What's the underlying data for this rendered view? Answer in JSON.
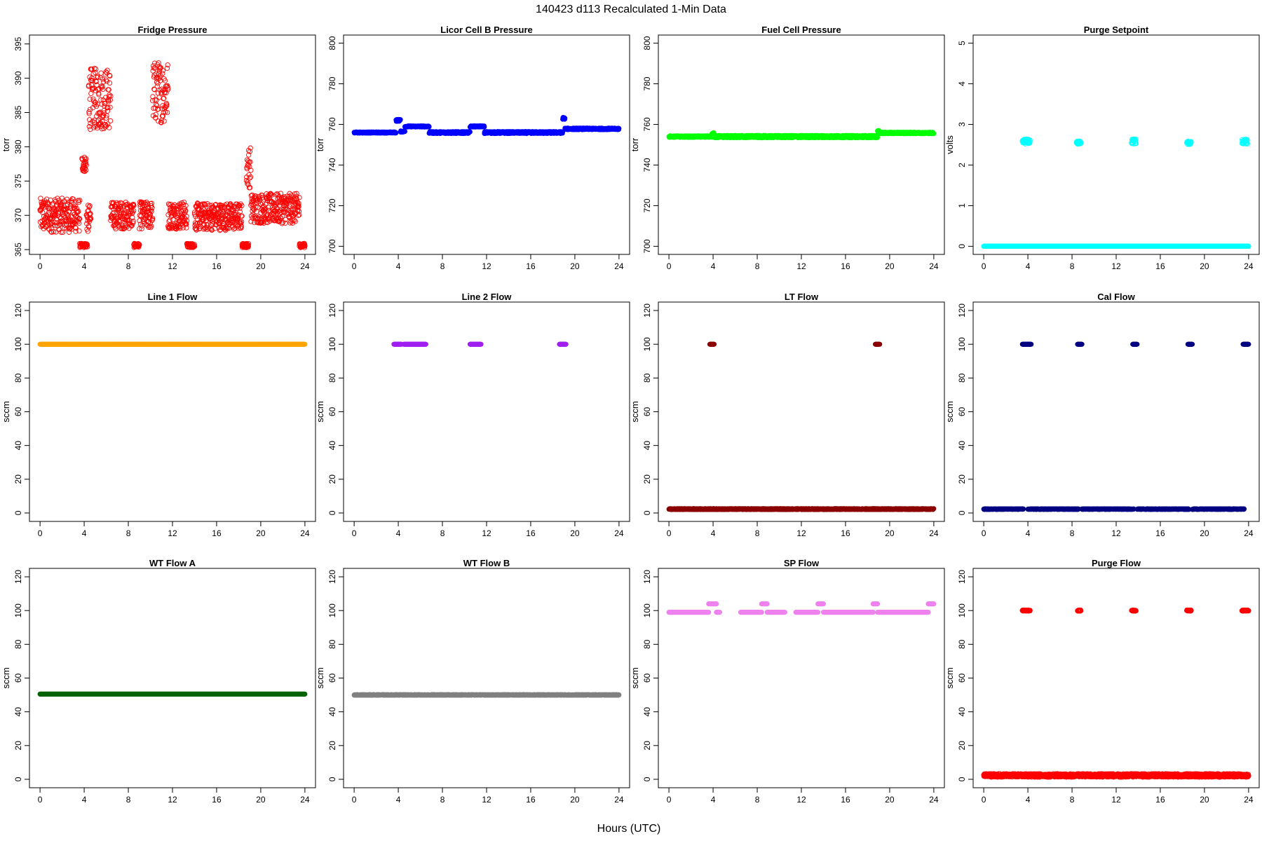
{
  "title": "140423   d113   Recalculated 1-Min Data",
  "xlabel": "Hours (UTC)",
  "chart_data": [
    {
      "type": "scatter",
      "title": "Fridge Pressure",
      "ylabel": "torr",
      "xlim": [
        -0.96,
        24.96
      ],
      "ylim": [
        364.3,
        396.3
      ],
      "xticks": [
        0,
        4,
        8,
        12,
        16,
        20,
        24
      ],
      "yticks": [
        365,
        370,
        375,
        380,
        385,
        390,
        395
      ],
      "color": "#ff0000",
      "marker": "open-circle",
      "series": [
        {
          "x_range": [
            0,
            3.6
          ],
          "y_center": 370,
          "y_spread": 2.5
        },
        {
          "x_range": [
            3.6,
            4.3
          ],
          "y_center": 365.6,
          "y_spread": 0.3
        },
        {
          "x_range": [
            3.8,
            4.2
          ],
          "y_center": 377.5,
          "y_spread": 1.2
        },
        {
          "x_range": [
            4.2,
            4.6
          ],
          "y_center": 369.5,
          "y_spread": 2
        },
        {
          "x_range": [
            4.4,
            6.4
          ],
          "y_center": 387,
          "y_spread": 4.5
        },
        {
          "x_range": [
            6.4,
            8.5
          ],
          "y_center": 370,
          "y_spread": 2
        },
        {
          "x_range": [
            8.5,
            9.0
          ],
          "y_center": 365.6,
          "y_spread": 0.3
        },
        {
          "x_range": [
            9.0,
            10.2
          ],
          "y_center": 370,
          "y_spread": 2
        },
        {
          "x_range": [
            10.2,
            11.6
          ],
          "y_center": 388,
          "y_spread": 4.5
        },
        {
          "x_range": [
            11.6,
            13.3
          ],
          "y_center": 370,
          "y_spread": 2
        },
        {
          "x_range": [
            13.3,
            14.0
          ],
          "y_center": 365.6,
          "y_spread": 0.3
        },
        {
          "x_range": [
            14.0,
            18.3
          ],
          "y_center": 369.8,
          "y_spread": 2
        },
        {
          "x_range": [
            18.3,
            18.9
          ],
          "y_center": 365.6,
          "y_spread": 0.3
        },
        {
          "x_range": [
            18.7,
            19.1
          ],
          "y_center": 377,
          "y_spread": 3
        },
        {
          "x_range": [
            19.1,
            23.5
          ],
          "y_center": 371,
          "y_spread": 2.2
        },
        {
          "x_range": [
            23.5,
            24
          ],
          "y_center": 365.6,
          "y_spread": 0.3
        }
      ]
    },
    {
      "type": "scatter",
      "title": "Licor Cell B Pressure",
      "ylabel": "torr",
      "xlim": [
        -0.96,
        24.96
      ],
      "ylim": [
        696,
        804
      ],
      "xticks": [
        0,
        4,
        8,
        12,
        16,
        20,
        24
      ],
      "yticks": [
        700,
        720,
        740,
        760,
        780,
        800
      ],
      "color": "#0000ff",
      "marker": "filled-circle",
      "series": [
        {
          "x_range": [
            0,
            3.8
          ],
          "y_center": 756,
          "y_spread": 0.3
        },
        {
          "x_range": [
            3.8,
            4.2
          ],
          "y_center": 762,
          "y_spread": 0.5
        },
        {
          "x_range": [
            4.2,
            4.6
          ],
          "y_center": 756.5,
          "y_spread": 0.3
        },
        {
          "x_range": [
            4.6,
            6.8
          ],
          "y_center": 759,
          "y_spread": 0.3
        },
        {
          "x_range": [
            6.8,
            10.5
          ],
          "y_center": 756,
          "y_spread": 0.5
        },
        {
          "x_range": [
            10.5,
            11.8
          ],
          "y_center": 759,
          "y_spread": 0.3
        },
        {
          "x_range": [
            11.8,
            17.5
          ],
          "y_center": 756,
          "y_spread": 0.5
        },
        {
          "x_range": [
            17.5,
            18.9
          ],
          "y_center": 756,
          "y_spread": 0.5
        },
        {
          "x_range": [
            18.9,
            19.1
          ],
          "y_center": 763,
          "y_spread": 0.5
        },
        {
          "x_range": [
            19.1,
            24
          ],
          "y_center": 757.8,
          "y_spread": 0.4
        }
      ]
    },
    {
      "type": "scatter",
      "title": "Fuel Cell Pressure",
      "ylabel": "torr",
      "xlim": [
        -0.96,
        24.96
      ],
      "ylim": [
        696,
        804
      ],
      "xticks": [
        0,
        4,
        8,
        12,
        16,
        20,
        24
      ],
      "yticks": [
        700,
        720,
        740,
        760,
        780,
        800
      ],
      "color": "#00ff00",
      "marker": "filled-circle",
      "series": [
        {
          "x_range": [
            0,
            3.9
          ],
          "y_center": 754,
          "y_spread": 0.4
        },
        {
          "x_range": [
            3.9,
            4.1
          ],
          "y_center": 755.5,
          "y_spread": 0.5
        },
        {
          "x_range": [
            4.1,
            18.9
          ],
          "y_center": 754,
          "y_spread": 0.6
        },
        {
          "x_range": [
            18.9,
            19.1
          ],
          "y_center": 756.5,
          "y_spread": 0.5
        },
        {
          "x_range": [
            19.1,
            24
          ],
          "y_center": 755.8,
          "y_spread": 0.4
        }
      ]
    },
    {
      "type": "scatter",
      "title": "Purge Setpoint",
      "ylabel": "volts",
      "xlim": [
        -0.96,
        24.96
      ],
      "ylim": [
        -0.2,
        5.2
      ],
      "xticks": [
        0,
        4,
        8,
        12,
        16,
        20,
        24
      ],
      "yticks": [
        0,
        1,
        2,
        3,
        4,
        5
      ],
      "color": "#00ffff",
      "marker": "open-circle",
      "series": [
        {
          "x_range": [
            0,
            24
          ],
          "y_center": 0,
          "y_spread": 0
        },
        {
          "x_range": [
            3.5,
            4.2
          ],
          "y_center": 2.58,
          "y_spread": 0.06
        },
        {
          "x_range": [
            8.4,
            8.8
          ],
          "y_center": 2.55,
          "y_spread": 0.04
        },
        {
          "x_range": [
            13.4,
            13.8
          ],
          "y_center": 2.58,
          "y_spread": 0.06
        },
        {
          "x_range": [
            18.4,
            18.8
          ],
          "y_center": 2.55,
          "y_spread": 0.04
        },
        {
          "x_range": [
            23.4,
            23.9
          ],
          "y_center": 2.58,
          "y_spread": 0.06
        }
      ]
    },
    {
      "type": "scatter",
      "title": "Line 1 Flow",
      "ylabel": "sccm",
      "xlim": [
        -0.96,
        24.96
      ],
      "ylim": [
        -5,
        125
      ],
      "xticks": [
        0,
        4,
        8,
        12,
        16,
        20,
        24
      ],
      "yticks": [
        0,
        20,
        40,
        60,
        80,
        100,
        120
      ],
      "color": "#ffa500",
      "marker": "filled-circle",
      "series": [
        {
          "x_range": [
            0,
            24
          ],
          "y_center": 100,
          "y_spread": 0
        }
      ]
    },
    {
      "type": "scatter",
      "title": "Line 2 Flow",
      "ylabel": "sccm",
      "xlim": [
        -0.96,
        24.96
      ],
      "ylim": [
        -5,
        125
      ],
      "xticks": [
        0,
        4,
        8,
        12,
        16,
        20,
        24
      ],
      "yticks": [
        0,
        20,
        40,
        60,
        80,
        100,
        120
      ],
      "color": "#a020f0",
      "marker": "filled-circle",
      "series": [
        {
          "x_range": [
            3.6,
            4.3
          ],
          "y_center": 100,
          "y_spread": 0
        },
        {
          "x_range": [
            4.5,
            6.5
          ],
          "y_center": 100,
          "y_spread": 0
        },
        {
          "x_range": [
            10.5,
            11.5
          ],
          "y_center": 100,
          "y_spread": 0
        },
        {
          "x_range": [
            18.6,
            19.2
          ],
          "y_center": 100,
          "y_spread": 0
        }
      ]
    },
    {
      "type": "scatter",
      "title": "LT Flow",
      "ylabel": "sccm",
      "xlim": [
        -0.96,
        24.96
      ],
      "ylim": [
        -5,
        125
      ],
      "xticks": [
        0,
        4,
        8,
        12,
        16,
        20,
        24
      ],
      "yticks": [
        0,
        20,
        40,
        60,
        80,
        100,
        120
      ],
      "color": "#8b0000",
      "marker": "filled-circle",
      "series": [
        {
          "x_range": [
            0,
            24
          ],
          "y_center": 2.3,
          "y_spread": 0.3
        },
        {
          "x_range": [
            3.7,
            4.1
          ],
          "y_center": 100,
          "y_spread": 0
        },
        {
          "x_range": [
            18.7,
            19.1
          ],
          "y_center": 100,
          "y_spread": 0
        }
      ]
    },
    {
      "type": "scatter",
      "title": "Cal Flow",
      "ylabel": "sccm",
      "xlim": [
        -0.96,
        24.96
      ],
      "ylim": [
        -5,
        125
      ],
      "xticks": [
        0,
        4,
        8,
        12,
        16,
        20,
        24
      ],
      "yticks": [
        0,
        20,
        40,
        60,
        80,
        100,
        120
      ],
      "color": "#000080",
      "marker": "filled-circle",
      "series": [
        {
          "x_range": [
            0,
            3.6
          ],
          "y_center": 2.3,
          "y_spread": 0.2
        },
        {
          "x_range": [
            4.0,
            8.6
          ],
          "y_center": 2.3,
          "y_spread": 0.2
        },
        {
          "x_range": [
            8.9,
            13.6
          ],
          "y_center": 2.3,
          "y_spread": 0.2
        },
        {
          "x_range": [
            13.9,
            18.6
          ],
          "y_center": 2.3,
          "y_spread": 0.2
        },
        {
          "x_range": [
            18.9,
            23.6
          ],
          "y_center": 2.3,
          "y_spread": 0.2
        },
        {
          "x_range": [
            3.5,
            4.3
          ],
          "y_center": 100,
          "y_spread": 0
        },
        {
          "x_range": [
            8.5,
            8.9
          ],
          "y_center": 100,
          "y_spread": 0
        },
        {
          "x_range": [
            13.5,
            13.9
          ],
          "y_center": 100,
          "y_spread": 0
        },
        {
          "x_range": [
            18.5,
            18.9
          ],
          "y_center": 100,
          "y_spread": 0
        },
        {
          "x_range": [
            23.5,
            24
          ],
          "y_center": 100,
          "y_spread": 0
        }
      ]
    },
    {
      "type": "scatter",
      "title": "WT Flow A",
      "ylabel": "sccm",
      "xlim": [
        -0.96,
        24.96
      ],
      "ylim": [
        -5,
        125
      ],
      "xticks": [
        0,
        4,
        8,
        12,
        16,
        20,
        24
      ],
      "yticks": [
        0,
        20,
        40,
        60,
        80,
        100,
        120
      ],
      "color": "#006400",
      "marker": "filled-circle",
      "series": [
        {
          "x_range": [
            0,
            24
          ],
          "y_center": 50.5,
          "y_spread": 0
        }
      ]
    },
    {
      "type": "scatter",
      "title": "WT Flow B",
      "ylabel": "sccm",
      "xlim": [
        -0.96,
        24.96
      ],
      "ylim": [
        -5,
        125
      ],
      "xticks": [
        0,
        4,
        8,
        12,
        16,
        20,
        24
      ],
      "yticks": [
        0,
        20,
        40,
        60,
        80,
        100,
        120
      ],
      "color": "#808080",
      "marker": "filled-circle",
      "series": [
        {
          "x_range": [
            0,
            24
          ],
          "y_center": 50,
          "y_spread": 0.2
        }
      ]
    },
    {
      "type": "scatter",
      "title": "SP Flow",
      "ylabel": "sccm",
      "xlim": [
        -0.96,
        24.96
      ],
      "ylim": [
        -5,
        125
      ],
      "xticks": [
        0,
        4,
        8,
        12,
        16,
        20,
        24
      ],
      "yticks": [
        0,
        20,
        40,
        60,
        80,
        100,
        120
      ],
      "color": "#ee82ee",
      "marker": "filled-circle",
      "series": [
        {
          "x_range": [
            0,
            3.6
          ],
          "y_center": 99,
          "y_spread": 0
        },
        {
          "x_range": [
            3.6,
            4.3
          ],
          "y_center": 104,
          "y_spread": 0
        },
        {
          "x_range": [
            4.3,
            4.6
          ],
          "y_center": 99,
          "y_spread": 0
        },
        {
          "x_range": [
            6.5,
            8.4
          ],
          "y_center": 99,
          "y_spread": 0
        },
        {
          "x_range": [
            8.4,
            8.9
          ],
          "y_center": 104,
          "y_spread": 0
        },
        {
          "x_range": [
            8.9,
            10.5
          ],
          "y_center": 99,
          "y_spread": 0
        },
        {
          "x_range": [
            11.5,
            13.5
          ],
          "y_center": 99,
          "y_spread": 0
        },
        {
          "x_range": [
            13.5,
            14.0
          ],
          "y_center": 104,
          "y_spread": 0
        },
        {
          "x_range": [
            14.0,
            18.5
          ],
          "y_center": 99,
          "y_spread": 0
        },
        {
          "x_range": [
            18.5,
            18.9
          ],
          "y_center": 104,
          "y_spread": 0
        },
        {
          "x_range": [
            18.9,
            23.5
          ],
          "y_center": 99,
          "y_spread": 0
        },
        {
          "x_range": [
            23.5,
            24
          ],
          "y_center": 104,
          "y_spread": 0
        }
      ]
    },
    {
      "type": "scatter",
      "title": "Purge Flow",
      "ylabel": "sccm",
      "xlim": [
        -0.96,
        24.96
      ],
      "ylim": [
        -5,
        125
      ],
      "xticks": [
        0,
        4,
        8,
        12,
        16,
        20,
        24
      ],
      "yticks": [
        0,
        20,
        40,
        60,
        80,
        100,
        120
      ],
      "color": "#ff0000",
      "marker": "open-circle",
      "series": [
        {
          "x_range": [
            0,
            24
          ],
          "y_center": 2.3,
          "y_spread": 1
        },
        {
          "x_range": [
            3.5,
            4.2
          ],
          "y_center": 100,
          "y_spread": 0.3
        },
        {
          "x_range": [
            8.5,
            8.8
          ],
          "y_center": 100,
          "y_spread": 0.3
        },
        {
          "x_range": [
            13.4,
            13.8
          ],
          "y_center": 100,
          "y_spread": 0.3
        },
        {
          "x_range": [
            18.4,
            18.8
          ],
          "y_center": 100,
          "y_spread": 0.3
        },
        {
          "x_range": [
            23.4,
            24
          ],
          "y_center": 100,
          "y_spread": 0.3
        }
      ]
    }
  ]
}
